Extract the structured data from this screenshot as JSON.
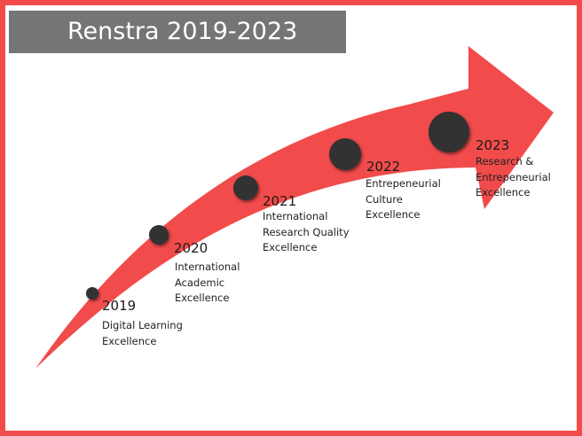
{
  "title": "Renstra 2019-2023",
  "colors": {
    "arrow": "#f24b4b",
    "border": "#f24b4b",
    "title_bg": "#757575",
    "dot": "#333333"
  },
  "milestones": [
    {
      "year": "2019",
      "description": "Digital Learning\nExcellence"
    },
    {
      "year": "2020",
      "description": "International\nAcademic\nExcellence"
    },
    {
      "year": "2021",
      "description": "International\nResearch Quality\nExcellence"
    },
    {
      "year": "2022",
      "description": "Entrepeneurial\nCulture\nExcellence"
    },
    {
      "year": "2023",
      "description": "Research &\nEntrepeneurial\nExcellence"
    }
  ]
}
